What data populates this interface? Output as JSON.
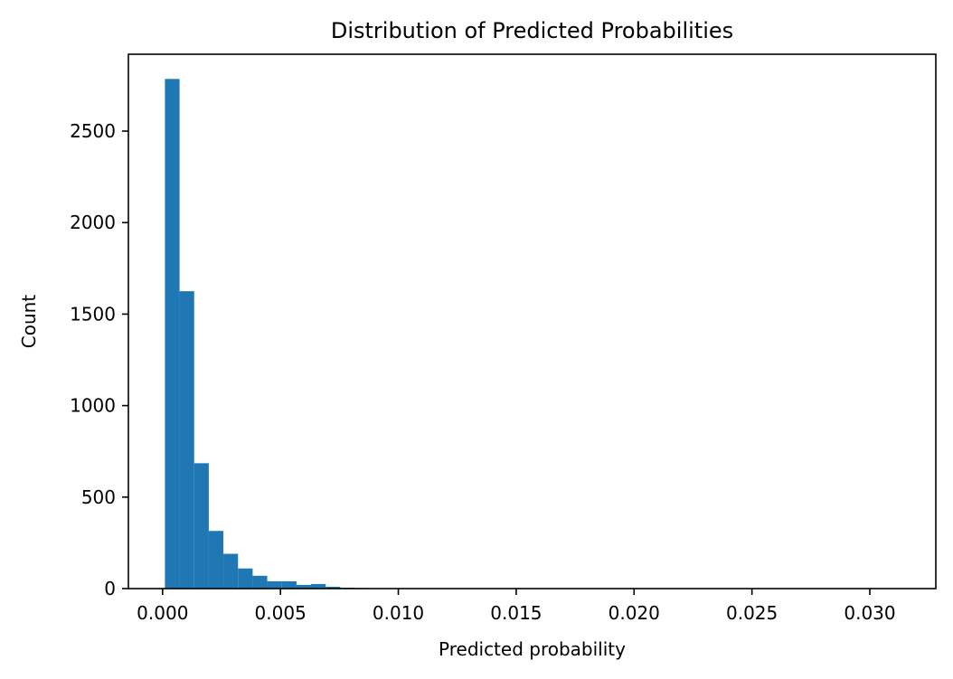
{
  "chart_data": {
    "type": "bar",
    "title": "Distribution of Predicted Probabilities",
    "xlabel": "Predicted probability",
    "ylabel": "Count",
    "xlim": [
      -0.00145,
      0.0328
    ],
    "ylim": [
      0,
      2920
    ],
    "grid": false,
    "colors": {
      "bar": "#1f77b4"
    },
    "bins": {
      "start": 0.0001,
      "width": 0.00062,
      "counts": [
        2785,
        1625,
        685,
        315,
        190,
        110,
        70,
        40,
        40,
        20,
        25,
        10,
        5,
        3,
        2,
        1,
        1,
        1,
        1,
        1,
        1,
        1,
        0,
        0,
        0,
        0,
        0,
        0,
        0,
        0,
        0,
        0,
        0,
        0,
        0,
        0,
        0,
        0,
        0,
        0,
        0,
        0,
        0,
        0,
        0,
        0,
        0,
        0,
        0,
        1
      ]
    },
    "x_ticks": [
      {
        "value": 0.0,
        "label": "0.000"
      },
      {
        "value": 0.005,
        "label": "0.005"
      },
      {
        "value": 0.01,
        "label": "0.010"
      },
      {
        "value": 0.015,
        "label": "0.015"
      },
      {
        "value": 0.02,
        "label": "0.020"
      },
      {
        "value": 0.025,
        "label": "0.025"
      },
      {
        "value": 0.03,
        "label": "0.030"
      }
    ],
    "y_ticks": [
      {
        "value": 0,
        "label": "0"
      },
      {
        "value": 500,
        "label": "500"
      },
      {
        "value": 1000,
        "label": "1000"
      },
      {
        "value": 1500,
        "label": "1500"
      },
      {
        "value": 2000,
        "label": "2000"
      },
      {
        "value": 2500,
        "label": "2500"
      }
    ]
  }
}
